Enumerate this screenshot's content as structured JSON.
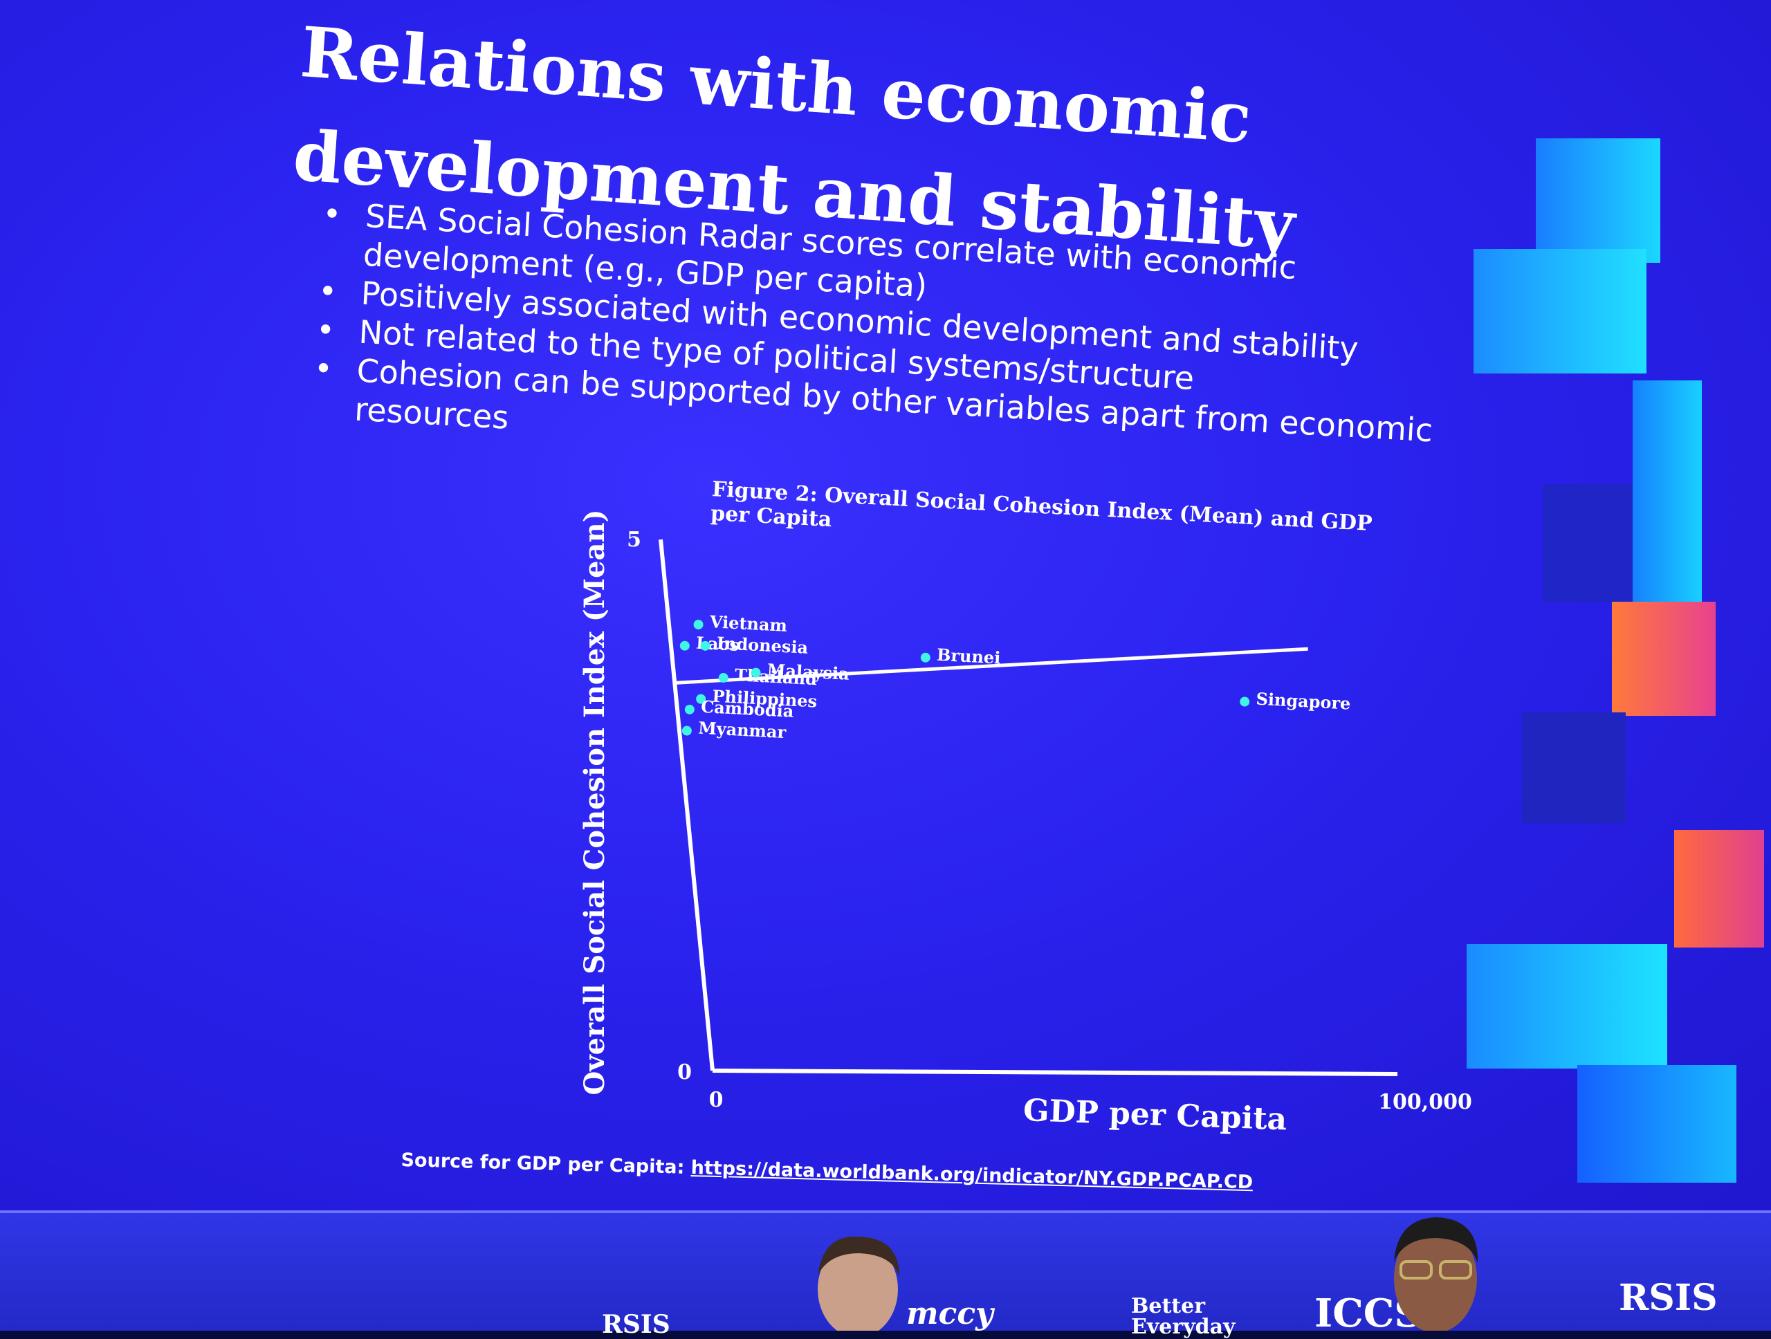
{
  "slide": {
    "title": "Relations with economic development and stability",
    "bullets": [
      "SEA Social Cohesion Radar scores correlate with economic development (e.g., GDP per capita)",
      "Positively associated with economic development and stability",
      "Not related to the type of political systems/structure",
      "Cohesion can be supported by other variables apart from economic resources"
    ],
    "source_label": "Source for GDP per Capita:",
    "source_url": "https://data.worldbank.org/indicator/NY.GDP.PCAP.CD"
  },
  "chart_data": {
    "type": "scatter",
    "title": "Figure 2: Overall Social Cohesion Index (Mean) and GDP per Capita",
    "xlabel": "GDP per Capita",
    "ylabel": "Overall Social Cohesion Index (Mean)",
    "xlim": [
      0,
      100000
    ],
    "ylim": [
      0,
      5
    ],
    "x_ticks": [
      "0",
      "100,000"
    ],
    "y_ticks": [
      "0",
      "5"
    ],
    "points": [
      {
        "label": "Vietnam",
        "x": 4300,
        "y": 4.2
      },
      {
        "label": "Laos",
        "x": 2000,
        "y": 4.0
      },
      {
        "label": "Indonesia",
        "x": 5000,
        "y": 4.0
      },
      {
        "label": "Thailand",
        "x": 7200,
        "y": 3.7
      },
      {
        "label": "Malaysia",
        "x": 12000,
        "y": 3.75
      },
      {
        "label": "Brunei",
        "x": 37000,
        "y": 3.9
      },
      {
        "label": "Philippines",
        "x": 3600,
        "y": 3.5
      },
      {
        "label": "Cambodia",
        "x": 1800,
        "y": 3.4
      },
      {
        "label": "Myanmar",
        "x": 1100,
        "y": 3.2
      },
      {
        "label": "Singapore",
        "x": 83000,
        "y": 3.5
      }
    ],
    "trend_line": {
      "x": [
        0,
        93000
      ],
      "y": [
        3.65,
        4.0
      ]
    },
    "legend": "none"
  },
  "stage": {
    "logos": [
      "RSIS",
      "mccy",
      "Better Everyday",
      "ICCS",
      "RSIS"
    ]
  },
  "colors": {
    "slide_bg": "#2a22ee",
    "point": "#3ff5e6",
    "text": "#ffffff",
    "accent_cyan": "#19c9ff",
    "accent_orange": "#ff6a3d"
  }
}
